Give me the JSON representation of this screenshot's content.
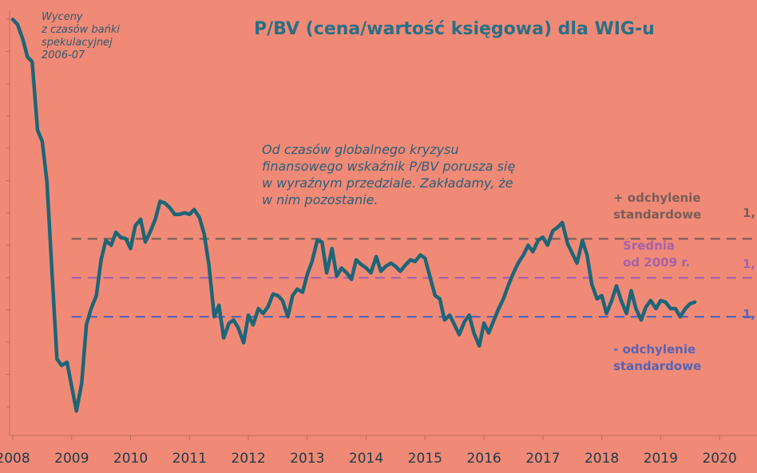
{
  "chart_data": {
    "type": "line",
    "title": "P/BV (cena/wartość księgowa) dla WIG-u",
    "xlabel": "",
    "ylabel": "",
    "x_ticks": [
      "2008",
      "2009",
      "2010",
      "2011",
      "2012",
      "2013",
      "2014",
      "2015",
      "2016",
      "2017",
      "2018",
      "2019",
      "2020"
    ],
    "xlim": [
      2008.0,
      2020.5
    ],
    "ylim": [
      0.55,
      3.3
    ],
    "series": [
      {
        "values": [
          [
            2008.0,
            3.18
          ],
          [
            2008.08,
            3.15
          ],
          [
            2008.17,
            3.06
          ],
          [
            2008.25,
            2.95
          ],
          [
            2008.33,
            2.92
          ],
          [
            2008.42,
            2.5
          ],
          [
            2008.5,
            2.43
          ],
          [
            2008.58,
            2.18
          ],
          [
            2008.67,
            1.6
          ],
          [
            2008.75,
            1.09
          ],
          [
            2008.83,
            1.05
          ],
          [
            2008.92,
            1.07
          ],
          [
            2009.0,
            0.92
          ],
          [
            2009.08,
            0.77
          ],
          [
            2009.17,
            0.94
          ],
          [
            2009.25,
            1.3
          ],
          [
            2009.33,
            1.4
          ],
          [
            2009.42,
            1.48
          ],
          [
            2009.5,
            1.7
          ],
          [
            2009.58,
            1.82
          ],
          [
            2009.67,
            1.79
          ],
          [
            2009.75,
            1.87
          ],
          [
            2009.83,
            1.84
          ],
          [
            2009.92,
            1.83
          ],
          [
            2010.0,
            1.77
          ],
          [
            2010.08,
            1.91
          ],
          [
            2010.17,
            1.95
          ],
          [
            2010.25,
            1.81
          ],
          [
            2010.33,
            1.87
          ],
          [
            2010.42,
            1.95
          ],
          [
            2010.5,
            2.06
          ],
          [
            2010.58,
            2.05
          ],
          [
            2010.67,
            2.02
          ],
          [
            2010.75,
            1.98
          ],
          [
            2010.83,
            1.98
          ],
          [
            2010.92,
            1.99
          ],
          [
            2011.0,
            1.98
          ],
          [
            2011.08,
            2.01
          ],
          [
            2011.17,
            1.96
          ],
          [
            2011.25,
            1.86
          ],
          [
            2011.33,
            1.67
          ],
          [
            2011.42,
            1.35
          ],
          [
            2011.5,
            1.42
          ],
          [
            2011.58,
            1.22
          ],
          [
            2011.67,
            1.31
          ],
          [
            2011.75,
            1.33
          ],
          [
            2011.83,
            1.28
          ],
          [
            2011.92,
            1.19
          ],
          [
            2012.0,
            1.36
          ],
          [
            2012.08,
            1.3
          ],
          [
            2012.17,
            1.4
          ],
          [
            2012.25,
            1.37
          ],
          [
            2012.33,
            1.41
          ],
          [
            2012.42,
            1.49
          ],
          [
            2012.5,
            1.48
          ],
          [
            2012.58,
            1.45
          ],
          [
            2012.67,
            1.35
          ],
          [
            2012.75,
            1.48
          ],
          [
            2012.83,
            1.52
          ],
          [
            2012.92,
            1.5
          ],
          [
            2013.0,
            1.61
          ],
          [
            2013.08,
            1.69
          ],
          [
            2013.17,
            1.82
          ],
          [
            2013.25,
            1.81
          ],
          [
            2013.33,
            1.62
          ],
          [
            2013.42,
            1.77
          ],
          [
            2013.5,
            1.6
          ],
          [
            2013.58,
            1.65
          ],
          [
            2013.67,
            1.62
          ],
          [
            2013.75,
            1.58
          ],
          [
            2013.83,
            1.7
          ],
          [
            2013.92,
            1.67
          ],
          [
            2014.0,
            1.65
          ],
          [
            2014.08,
            1.62
          ],
          [
            2014.17,
            1.72
          ],
          [
            2014.25,
            1.63
          ],
          [
            2014.33,
            1.66
          ],
          [
            2014.42,
            1.68
          ],
          [
            2014.5,
            1.66
          ],
          [
            2014.58,
            1.63
          ],
          [
            2014.67,
            1.67
          ],
          [
            2014.75,
            1.7
          ],
          [
            2014.83,
            1.69
          ],
          [
            2014.92,
            1.73
          ],
          [
            2015.0,
            1.71
          ],
          [
            2015.08,
            1.6
          ],
          [
            2015.17,
            1.48
          ],
          [
            2015.25,
            1.46
          ],
          [
            2015.33,
            1.33
          ],
          [
            2015.42,
            1.36
          ],
          [
            2015.5,
            1.3
          ],
          [
            2015.58,
            1.24
          ],
          [
            2015.67,
            1.32
          ],
          [
            2015.75,
            1.36
          ],
          [
            2015.83,
            1.25
          ],
          [
            2015.92,
            1.17
          ],
          [
            2016.0,
            1.31
          ],
          [
            2016.08,
            1.25
          ],
          [
            2016.17,
            1.33
          ],
          [
            2016.25,
            1.4
          ],
          [
            2016.33,
            1.46
          ],
          [
            2016.42,
            1.55
          ],
          [
            2016.5,
            1.62
          ],
          [
            2016.58,
            1.68
          ],
          [
            2016.67,
            1.73
          ],
          [
            2016.75,
            1.79
          ],
          [
            2016.83,
            1.75
          ],
          [
            2016.92,
            1.82
          ],
          [
            2017.0,
            1.84
          ],
          [
            2017.08,
            1.79
          ],
          [
            2017.17,
            1.88
          ],
          [
            2017.25,
            1.9
          ],
          [
            2017.33,
            1.93
          ],
          [
            2017.42,
            1.8
          ],
          [
            2017.5,
            1.74
          ],
          [
            2017.58,
            1.68
          ],
          [
            2017.67,
            1.82
          ],
          [
            2017.75,
            1.73
          ],
          [
            2017.83,
            1.55
          ],
          [
            2017.92,
            1.46
          ],
          [
            2018.0,
            1.48
          ],
          [
            2018.08,
            1.37
          ],
          [
            2018.17,
            1.45
          ],
          [
            2018.25,
            1.54
          ],
          [
            2018.33,
            1.45
          ],
          [
            2018.42,
            1.37
          ],
          [
            2018.5,
            1.51
          ],
          [
            2018.58,
            1.4
          ],
          [
            2018.67,
            1.33
          ],
          [
            2018.75,
            1.41
          ],
          [
            2018.83,
            1.45
          ],
          [
            2018.92,
            1.4
          ],
          [
            2019.0,
            1.45
          ],
          [
            2019.08,
            1.44
          ],
          [
            2019.17,
            1.4
          ],
          [
            2019.25,
            1.4
          ],
          [
            2019.33,
            1.35
          ],
          [
            2019.42,
            1.4
          ],
          [
            2019.5,
            1.43
          ],
          [
            2019.58,
            1.44
          ]
        ]
      }
    ],
    "reference_lines": [
      {
        "name": "+ odchylenie standardowe",
        "y": 1.83,
        "color": "#7a5d58"
      },
      {
        "name": "Średnia od 2009 r.",
        "y": 1.59,
        "color": "#a861a8"
      },
      {
        "name": "- odchylenie standardowe",
        "y": 1.35,
        "color": "#5863b4"
      }
    ],
    "annotations": {
      "bubble": "Wyceny\nz czasów bańki\nspekulacyjnej\n2006-07",
      "main": "Od czasów globalnego kryzysu\nfinansowego wskaźnik P/BV porusza się\nw wyraźnym przedziale. Zakładamy, że\nw nim pozostanie.",
      "plus": "+ odchylenie\nstandardowe",
      "mean": "Średnia\nod 2009 r.",
      "minus": "- odchylenie\nstandardowe",
      "cut_plus": "1,",
      "cut_mean": "1,",
      "cut_minus": "1,"
    },
    "colors": {
      "background": "#f08a76",
      "line": "#1d6577",
      "title": "#2a6f86"
    },
    "grid": false,
    "legend": "none"
  }
}
